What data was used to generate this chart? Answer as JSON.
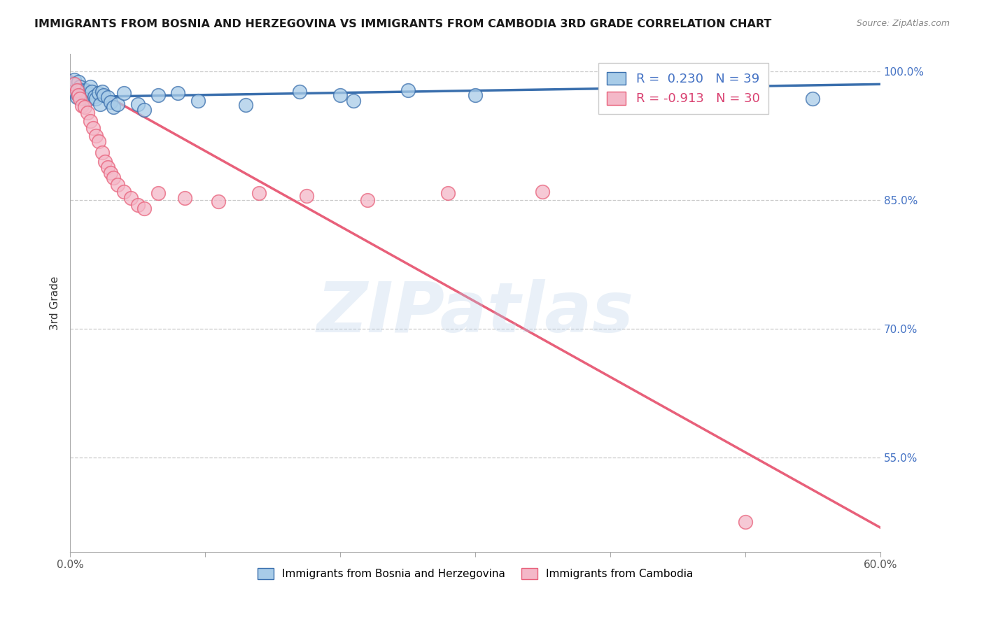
{
  "title": "IMMIGRANTS FROM BOSNIA AND HERZEGOVINA VS IMMIGRANTS FROM CAMBODIA 3RD GRADE CORRELATION CHART",
  "source": "Source: ZipAtlas.com",
  "ylabel": "3rd Grade",
  "xlim": [
    0.0,
    0.6
  ],
  "ylim": [
    0.44,
    1.02
  ],
  "x_ticks": [
    0.0,
    0.1,
    0.2,
    0.3,
    0.4,
    0.5,
    0.6
  ],
  "x_tick_labels": [
    "0.0%",
    "",
    "",
    "",
    "",
    "",
    "60.0%"
  ],
  "y_ticks_right": [
    0.55,
    0.7,
    0.85,
    1.0
  ],
  "y_tick_labels_right": [
    "55.0%",
    "70.0%",
    "85.0%",
    "100.0%"
  ],
  "bosnia_R": 0.23,
  "bosnia_N": 39,
  "cambodia_R": -0.913,
  "cambodia_N": 30,
  "bosnia_color": "#a8cce8",
  "cambodia_color": "#f4b8c8",
  "line_bosnia_color": "#3a6fad",
  "line_cambodia_color": "#e8607a",
  "background_color": "#ffffff",
  "watermark_text": "ZIPatlas",
  "bosnia_line_x0": 0.0,
  "bosnia_line_y0": 0.97,
  "bosnia_line_x1": 0.6,
  "bosnia_line_y1": 0.985,
  "cambodia_line_x0": 0.0,
  "cambodia_line_y0": 0.995,
  "cambodia_line_x1": 0.6,
  "cambodia_line_y1": 0.468,
  "bosnia_x": [
    0.002,
    0.003,
    0.004,
    0.005,
    0.006,
    0.007,
    0.008,
    0.009,
    0.01,
    0.011,
    0.012,
    0.013,
    0.014,
    0.015,
    0.016,
    0.018,
    0.019,
    0.021,
    0.022,
    0.024,
    0.025,
    0.028,
    0.03,
    0.032,
    0.035,
    0.04,
    0.05,
    0.055,
    0.065,
    0.08,
    0.095,
    0.13,
    0.17,
    0.2,
    0.21,
    0.25,
    0.3,
    0.55,
    0.006
  ],
  "bosnia_y": [
    0.985,
    0.99,
    0.975,
    0.97,
    0.988,
    0.982,
    0.978,
    0.972,
    0.968,
    0.975,
    0.978,
    0.974,
    0.968,
    0.982,
    0.976,
    0.971,
    0.968,
    0.975,
    0.962,
    0.976,
    0.972,
    0.97,
    0.964,
    0.958,
    0.962,
    0.975,
    0.962,
    0.955,
    0.972,
    0.975,
    0.966,
    0.961,
    0.976,
    0.972,
    0.966,
    0.978,
    0.972,
    0.968,
    0.972
  ],
  "cambodia_x": [
    0.003,
    0.005,
    0.006,
    0.007,
    0.009,
    0.011,
    0.013,
    0.015,
    0.017,
    0.019,
    0.021,
    0.024,
    0.026,
    0.028,
    0.03,
    0.032,
    0.035,
    0.04,
    0.045,
    0.05,
    0.055,
    0.065,
    0.085,
    0.11,
    0.14,
    0.175,
    0.22,
    0.28,
    0.35,
    0.5
  ],
  "cambodia_y": [
    0.985,
    0.978,
    0.972,
    0.968,
    0.96,
    0.958,
    0.952,
    0.942,
    0.934,
    0.925,
    0.918,
    0.905,
    0.895,
    0.888,
    0.882,
    0.876,
    0.868,
    0.86,
    0.852,
    0.844,
    0.84,
    0.858,
    0.852,
    0.848,
    0.858,
    0.855,
    0.85,
    0.858,
    0.86,
    0.475
  ]
}
